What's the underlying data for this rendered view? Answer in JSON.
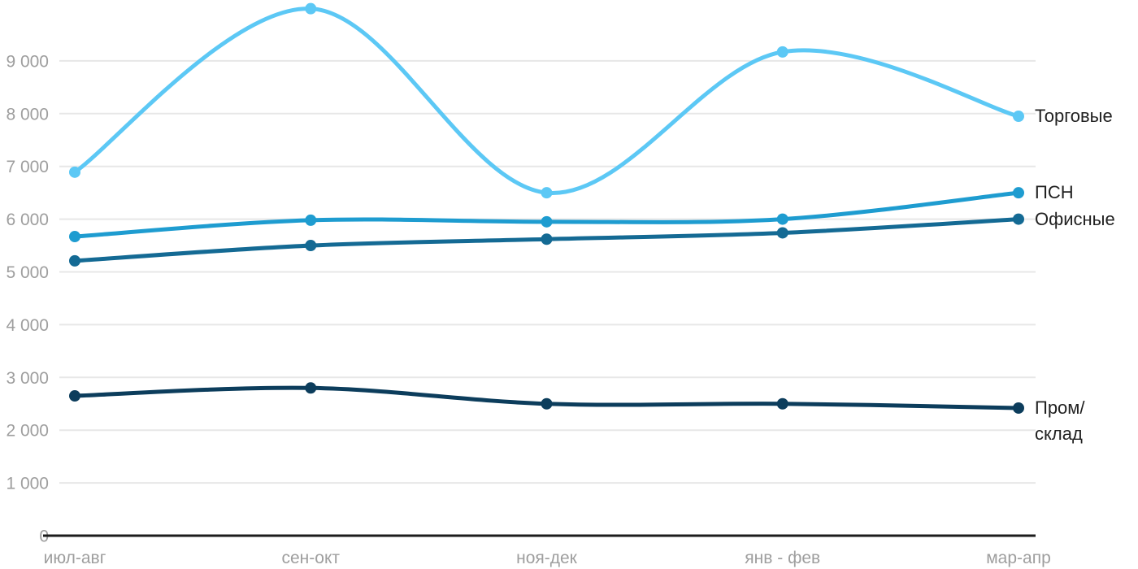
{
  "chart_data": {
    "type": "line",
    "title": "",
    "xlabel": "",
    "ylabel": "",
    "grid": true,
    "curve": "smooth",
    "legend_position": "right-of-last-point",
    "categories": [
      "июл-авг",
      "сен-окт",
      "ноя-дек",
      "янв - фев",
      "мар-апр"
    ],
    "series": [
      {
        "name": "Торговые",
        "color": "#5CC8F5",
        "values": [
          6890,
          9990,
          6500,
          9170,
          7950
        ]
      },
      {
        "name": "ПСН",
        "color": "#1E9CD0",
        "values": [
          5670,
          5980,
          5950,
          6000,
          6500
        ]
      },
      {
        "name": "Офисные",
        "color": "#146A94",
        "values": [
          5210,
          5500,
          5620,
          5740,
          6000
        ]
      },
      {
        "name": "Пром/склад",
        "color": "#0C3D5C",
        "values": [
          2650,
          2800,
          2500,
          2500,
          2420
        ],
        "label_lines": [
          "Пром/",
          "склад"
        ]
      }
    ],
    "ytick_values": [
      0,
      1000,
      2000,
      3000,
      4000,
      5000,
      6000,
      7000,
      8000,
      9000
    ],
    "ytick_labels": [
      "0",
      "1 000",
      "2 000",
      "3 000",
      "4 000",
      "5 000",
      "6 000",
      "7 000",
      "8 000",
      "9 000"
    ],
    "ylim": [
      0,
      10150
    ],
    "colors": {
      "grid": "#E7E7E7",
      "axis": "#1C1C1C",
      "tick_text": "#9E9E9E",
      "label_text": "#212121",
      "background": "#FFFFFF"
    }
  }
}
